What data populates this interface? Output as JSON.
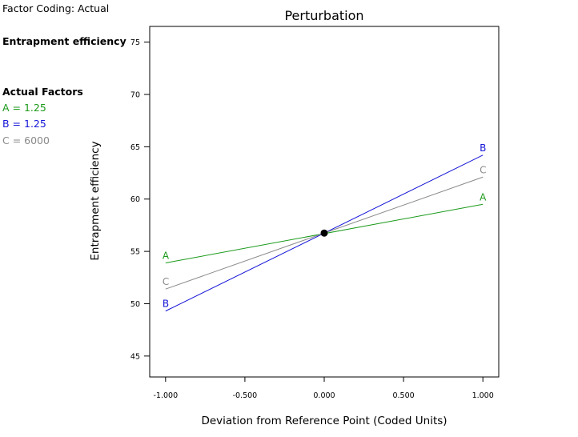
{
  "side_panel": {
    "factor_coding": "Factor Coding: Actual",
    "response": "Entrapment efficiency",
    "actual_factors_title": "Actual Factors",
    "factors": [
      {
        "text": "A = 1.25",
        "color": "#1a9a1a"
      },
      {
        "text": "B = 1.25",
        "color": "#1515d8"
      },
      {
        "text": "C = 6000",
        "color": "#8a8a8a"
      }
    ]
  },
  "chart_data": {
    "type": "line",
    "title": "Perturbation",
    "xlabel": "Deviation from Reference Point (Coded Units)",
    "ylabel": "Entrapment efficiency",
    "xlim": [
      -1.1,
      1.1
    ],
    "ylim": [
      43,
      76.5
    ],
    "x_ticks": [
      -1,
      -0.5,
      0,
      0.5,
      1
    ],
    "x_tick_labels": [
      "-1.000",
      "-0.500",
      "0.000",
      "0.500",
      "1.000"
    ],
    "y_ticks": [
      45,
      50,
      55,
      60,
      65,
      70,
      75
    ],
    "y_tick_labels": [
      "45",
      "50",
      "55",
      "60",
      "65",
      "70",
      "75"
    ],
    "grid": false,
    "series": [
      {
        "name": "A",
        "color": "#1a9a1a",
        "x": [
          -1,
          1
        ],
        "y": [
          53.9,
          59.5
        ]
      },
      {
        "name": "B",
        "color": "#1515d8",
        "x": [
          -1,
          1
        ],
        "y": [
          49.3,
          64.2
        ]
      },
      {
        "name": "C",
        "color": "#8a8a8a",
        "x": [
          -1,
          1
        ],
        "y": [
          51.4,
          62.1
        ]
      }
    ],
    "reference_point": {
      "x": 0,
      "y": 56.75
    }
  }
}
